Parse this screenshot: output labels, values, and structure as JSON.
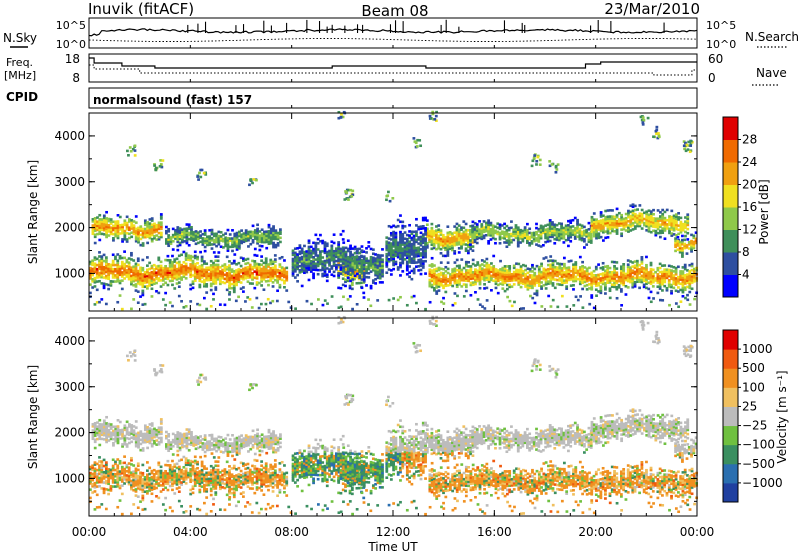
{
  "header": {
    "station": "Inuvik (fitACF)",
    "beam": "Beam 08",
    "date": "23/Mar/2010"
  },
  "top_panels": {
    "nsky": {
      "label": "N.Sky",
      "ticks": [
        "10^5",
        "10^0"
      ]
    },
    "nsearch": {
      "label": "N.Search",
      "ticks": [
        "10^5",
        "10^0"
      ]
    },
    "freq": {
      "label1": "Freq.",
      "label2": "[MHz]",
      "ticks": [
        "18",
        "8"
      ]
    },
    "nave": {
      "label": "Nave",
      "ticks": [
        "60",
        "0"
      ]
    },
    "cpid": {
      "label": "CPID",
      "value": "normalsound (fast) 157"
    }
  },
  "chart_data": [
    {
      "type": "heatmap",
      "name": "power",
      "ylabel": "Slant Range [km]",
      "xlabel": "Time UT",
      "x_ticks": [
        "00:00",
        "04:00",
        "08:00",
        "12:00",
        "16:00",
        "20:00",
        "00:00"
      ],
      "x_range_hours": [
        0,
        24
      ],
      "y_ticks": [
        "1000",
        "2000",
        "3000",
        "4000"
      ],
      "y_range_km": [
        180,
        4500
      ],
      "colorbar": {
        "label": "Power [dB]",
        "ticks": [
          "4",
          "8",
          "12",
          "16",
          "20",
          "24",
          "28"
        ],
        "range": [
          0,
          32
        ],
        "colors": [
          "#0000ff",
          "#2e4fa0",
          "#3f8f5a",
          "#8fc94a",
          "#f0e020",
          "#f0a010",
          "#f06a00",
          "#e00000"
        ]
      }
    },
    {
      "type": "heatmap",
      "name": "velocity",
      "ylabel": "Slant Range [km]",
      "xlabel": "Time UT",
      "x_ticks": [
        "00:00",
        "04:00",
        "08:00",
        "12:00",
        "16:00",
        "20:00",
        "00:00"
      ],
      "x_range_hours": [
        0,
        24
      ],
      "y_ticks": [
        "1000",
        "2000",
        "3000",
        "4000"
      ],
      "y_range_km": [
        180,
        4500
      ],
      "colorbar": {
        "label": "Velocity [m s⁻¹]",
        "ticks": [
          "1000",
          "500",
          "100",
          "25",
          "−25",
          "−100",
          "−500",
          "−1000"
        ],
        "colors": [
          "#2040a0",
          "#2a6fb0",
          "#3a8f60",
          "#6fc040",
          "#bcbcbc",
          "#f0c060",
          "#f09020",
          "#f05a10",
          "#e00000"
        ]
      }
    }
  ],
  "bands": [
    {
      "t0": 0,
      "t1": 5.5,
      "c": 1000,
      "w": 260,
      "p": 26
    },
    {
      "t0": 5.5,
      "t1": 7.8,
      "c": 950,
      "w": 230,
      "p": 27
    },
    {
      "t0": 9.8,
      "t1": 10.8,
      "c": 1050,
      "w": 280,
      "p": 22
    },
    {
      "t0": 13.4,
      "t1": 24,
      "c": 920,
      "w": 230,
      "p": 25
    },
    {
      "t0": 0.1,
      "t1": 2.8,
      "c": 1950,
      "w": 210,
      "p": 24
    },
    {
      "t0": 3,
      "t1": 7.5,
      "c": 1750,
      "w": 170,
      "p": 14
    },
    {
      "t0": 13.3,
      "t1": 15.2,
      "c": 1780,
      "w": 220,
      "p": 23
    },
    {
      "t0": 15,
      "t1": 19.8,
      "c": 1850,
      "w": 180,
      "p": 16
    },
    {
      "t0": 19.8,
      "t1": 23.6,
      "c": 2100,
      "w": 210,
      "p": 22
    },
    {
      "t0": 23.1,
      "t1": 24,
      "c": 1650,
      "w": 150,
      "p": 24
    },
    {
      "t0": 8,
      "t1": 10,
      "c": 1300,
      "w": 320,
      "p": 10
    },
    {
      "t0": 11.7,
      "t1": 13.3,
      "c": 1500,
      "w": 420,
      "p": 9
    },
    {
      "t0": 10,
      "t1": 11.6,
      "c": 1200,
      "w": 300,
      "p": 11
    }
  ],
  "speckles": [
    [
      1.6,
      3650,
      9
    ],
    [
      2.7,
      3350,
      14
    ],
    [
      4.4,
      3150,
      10
    ],
    [
      10.2,
      2700,
      16
    ],
    [
      12.9,
      3800,
      8
    ],
    [
      13.5,
      4400,
      10
    ],
    [
      17.6,
      3450,
      12
    ],
    [
      18.3,
      3300,
      9
    ],
    [
      21.9,
      4300,
      8
    ],
    [
      22.3,
      4050,
      10
    ],
    [
      23.6,
      3750,
      18
    ],
    [
      9.9,
      4400,
      8
    ],
    [
      11.8,
      2650,
      6
    ],
    [
      6.4,
      2950,
      8
    ]
  ]
}
